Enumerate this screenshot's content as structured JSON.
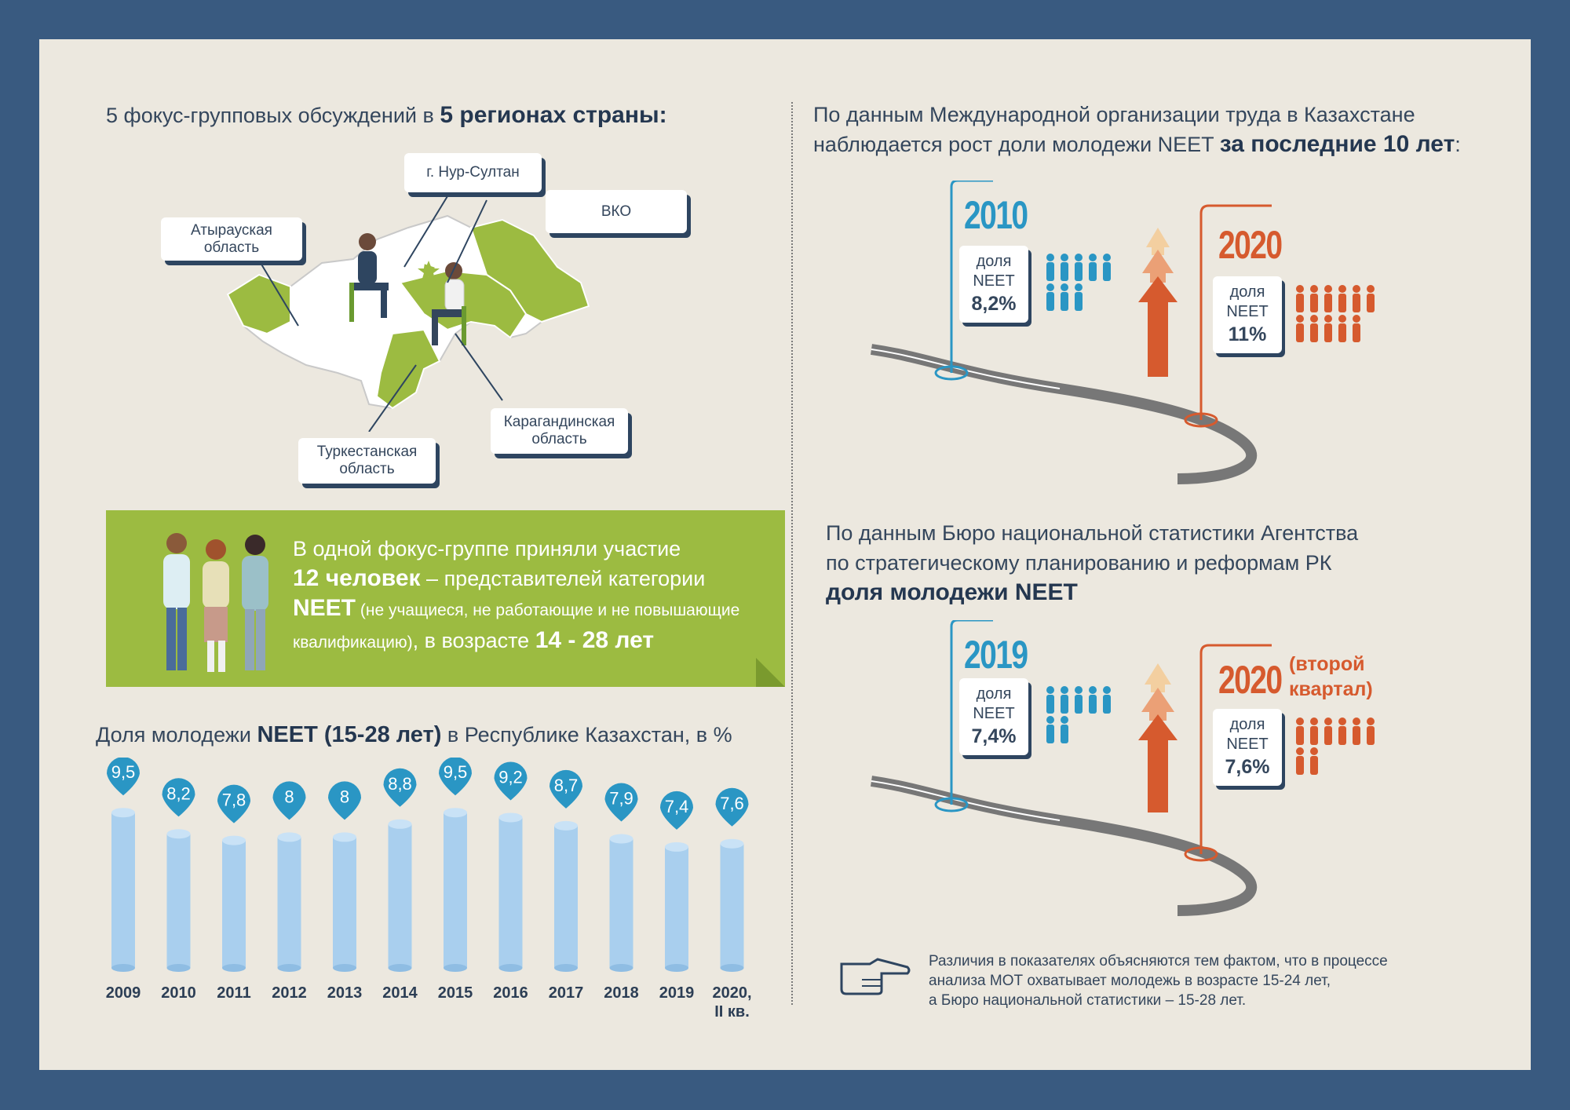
{
  "left": {
    "heading_pre": "5 фокус-групповых обсуждений в ",
    "heading_bold": "5 регионах страны:",
    "regions": {
      "nur_sultan": "г. Нур-Султан",
      "vko": "ВКО",
      "atyrau_1": "Атырауская",
      "atyrau_2": "область",
      "karaganda_1": "Карагандинская",
      "karaganda_2": "область",
      "turkestan_1": "Туркестанская",
      "turkestan_2": "область"
    },
    "banner": {
      "line1": "В одной фокус-группе приняли участие",
      "count_bold": "12 человек",
      "line2_rest": " – представителей категории",
      "neet_bold": "NEET",
      "neet_note": " (не учащиеся, не работающие и не повышающие",
      "line4_note": "квалификацию)",
      "line4_mid": ", в возрасте ",
      "age_bold": "14 - 28 лет"
    },
    "chart_title_pre": "Доля молодежи ",
    "chart_title_bold": "NEET (15-28 лет)",
    "chart_title_post": " в Республике Казахстан, в %"
  },
  "right": {
    "ilo_line1": "По данным Международной организации труда в Казахстане",
    "ilo_line2_pre": "наблюдается рост доли молодежи NEET ",
    "ilo_line2_bold": "за последние 10 лет",
    "ilo_line2_post": ":",
    "ilo_year_a": "2010",
    "ilo_year_b": "2020",
    "share_label_1": "доля",
    "share_label_2": "NEET",
    "ilo_val_a": "8,2%",
    "ilo_val_b": "11%",
    "bns_line1": "По данным Бюро национальной статистики Агентства",
    "bns_line2": "по стратегическому планированию и реформам РК",
    "bns_line3": "доля молодежи NEET",
    "bns_year_a": "2019",
    "bns_year_b": "2020",
    "bns_year_b_note_1": "(второй",
    "bns_year_b_note_2": "квартал)",
    "bns_val_a": "7,4%",
    "bns_val_b": "7,6%",
    "note_line1": "Различия в показателях объясняются тем фактом, что в процессе",
    "note_line2": "анализа МОТ охватывает молодежь в возрасте 15-24 лет,",
    "note_line3": "а Бюро национальной статистики – 15-28 лет."
  },
  "colors": {
    "blue": "#2a96c4",
    "orange": "#d65a2e",
    "green": "#9cbb41",
    "navy": "#2e4560",
    "frame": "#395a80"
  },
  "chart_data": {
    "type": "bar",
    "title": "Доля молодежи NEET (15-28 лет) в Республике Казахстан, в %",
    "categories": [
      "2009",
      "2010",
      "2011",
      "2012",
      "2013",
      "2014",
      "2015",
      "2016",
      "2017",
      "2018",
      "2019",
      "2020, II кв."
    ],
    "labels": [
      "9,5",
      "8,2",
      "7,8",
      "8",
      "8",
      "8,8",
      "9,5",
      "9,2",
      "8,7",
      "7,9",
      "7,4",
      "7,6"
    ],
    "values": [
      9.5,
      8.2,
      7.8,
      8,
      8,
      8.8,
      9.5,
      9.2,
      8.7,
      7.9,
      7.4,
      7.6
    ]
  }
}
